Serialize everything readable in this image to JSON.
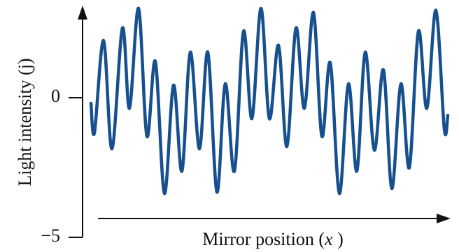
{
  "chart_data": {
    "type": "line",
    "y_label": "Light intensity (j)",
    "x_label": [
      "Mirror position (",
      "x",
      " )"
    ],
    "x": [
      0,
      5,
      18,
      30,
      45,
      55,
      68,
      80,
      92,
      105,
      118,
      130,
      142,
      155,
      167,
      180,
      192,
      205,
      218,
      230,
      243,
      255,
      268,
      280,
      293,
      305,
      318,
      330,
      342,
      355,
      368,
      380,
      392,
      405,
      418,
      430,
      443,
      455,
      468,
      480,
      493,
      505,
      510
    ],
    "series": [
      {
        "color": "#17508f",
        "values": [
          -0.2,
          -1.25,
          2.05,
          -1.83,
          2.5,
          -0.38,
          3.2,
          -1.38,
          1.3,
          -3.43,
          0.45,
          -2.63,
          1.63,
          -1.83,
          1.63,
          -3.38,
          0.5,
          -2.63,
          2.38,
          -0.75,
          3.2,
          -0.75,
          1.88,
          -1.75,
          2.5,
          -0.38,
          3.05,
          -1.38,
          1.25,
          -3.43,
          0.5,
          -2.63,
          1.63,
          -1.88,
          1.0,
          -3.25,
          0.5,
          -2.5,
          2.38,
          -0.38,
          3.13,
          -1.13,
          -0.63
        ]
      }
    ],
    "xlim": [
      -12,
      512
    ],
    "ylim": [
      -5,
      3.25
    ],
    "yticks": [
      0,
      {
        "value": -5,
        "label": "−5"
      }
    ]
  }
}
